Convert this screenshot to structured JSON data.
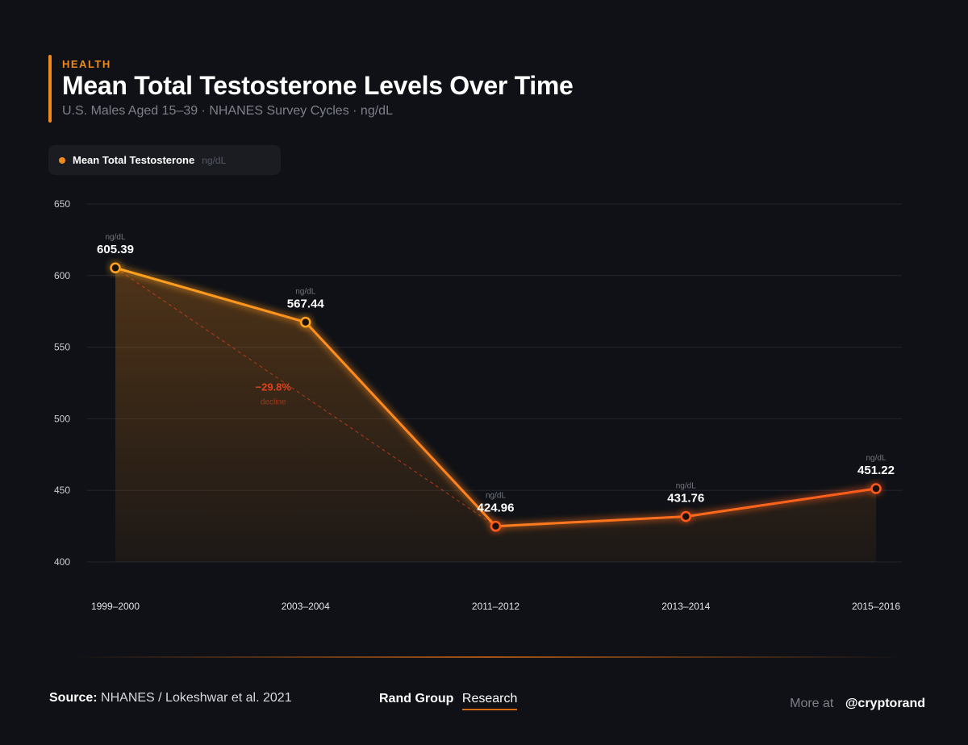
{
  "header": {
    "category": "HEALTH",
    "title": "Mean Total Testosterone Levels Over Time",
    "subtitle": "U.S. Males Aged 15–39 · NHANES Survey Cycles · ng/dL"
  },
  "legend": {
    "label": "Mean Total Testosterone",
    "unit": "ng/dL"
  },
  "chart_data": {
    "type": "area",
    "title": "Mean Total Testosterone Levels Over Time",
    "categories": [
      "1999–2000",
      "2003–2004",
      "2011–2012",
      "2013–2014",
      "2015–2016"
    ],
    "series": [
      {
        "name": "Mean Total Testosterone",
        "values": [
          605.39,
          567.44,
          424.96,
          431.76,
          451.22
        ]
      }
    ],
    "value_labels": [
      "605.39",
      "567.44",
      "424.96",
      "431.76",
      "451.22"
    ],
    "point_unit": "ng/dL",
    "ylim": [
      400,
      650
    ],
    "yticks": [
      400,
      450,
      500,
      550,
      600,
      650
    ],
    "ytick_labels": [
      "400",
      "450",
      "500",
      "550",
      "600",
      "650"
    ],
    "xlabel": "",
    "ylabel": "",
    "grid": true,
    "annotation": {
      "value": "−29.8%",
      "label": "decline",
      "from_index": 0,
      "to_index": 2
    },
    "colors": {
      "line_start": "#ffa31f",
      "line_end": "#ff5a1a",
      "accent": "#f08a1c",
      "annotation": "#e0421a"
    }
  },
  "footer": {
    "source_label": "Source:",
    "source_text": "NHANES / Lokeshwar et al. 2021",
    "brand_name": "Rand Group",
    "brand_suffix": "Research",
    "more_label": "More at",
    "handle": "@cryptorand"
  }
}
